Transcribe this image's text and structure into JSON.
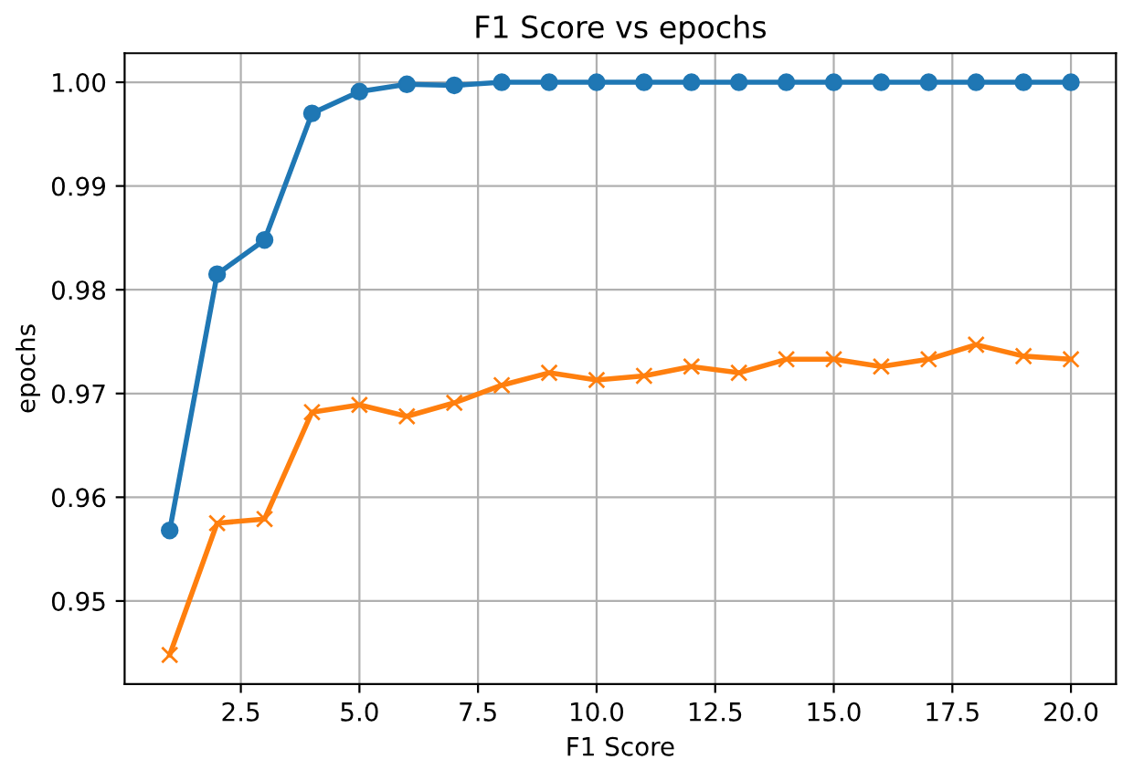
{
  "chart_data": {
    "type": "line",
    "title": "F1 Score vs epochs",
    "xlabel": "F1 Score",
    "ylabel": "epochs",
    "x": [
      1,
      2,
      3,
      4,
      5,
      6,
      7,
      8,
      9,
      10,
      11,
      12,
      13,
      14,
      15,
      16,
      17,
      18,
      19,
      20
    ],
    "series": [
      {
        "color": "#1f77b4",
        "marker": "circle",
        "values": [
          0.9568,
          0.9815,
          0.9848,
          0.997,
          0.9991,
          0.9998,
          0.9997,
          1.0,
          1.0,
          1.0,
          1.0,
          1.0,
          1.0,
          1.0,
          1.0,
          1.0,
          1.0,
          1.0,
          1.0,
          1.0
        ]
      },
      {
        "color": "#ff7f0e",
        "marker": "cross",
        "values": [
          0.9448,
          0.9575,
          0.9579,
          0.9682,
          0.9689,
          0.9678,
          0.9691,
          0.9708,
          0.972,
          0.9713,
          0.9717,
          0.9726,
          0.972,
          0.9733,
          0.9733,
          0.9726,
          0.9733,
          0.9747,
          0.9736,
          0.9733
        ]
      }
    ],
    "xlim": [
      0.05,
      20.95
    ],
    "xticks": [
      {
        "value": 2.5,
        "label": "2.5"
      },
      {
        "value": 5,
        "label": "5.0"
      },
      {
        "value": 7.5,
        "label": "7.5"
      },
      {
        "value": 10,
        "label": "10.0"
      },
      {
        "value": 12.5,
        "label": "12.5"
      },
      {
        "value": 15,
        "label": "15.0"
      },
      {
        "value": 17.5,
        "label": "17.5"
      },
      {
        "value": 20,
        "label": "20.0"
      }
    ],
    "ylim": [
      0.942,
      1.0028
    ],
    "yticks": [
      {
        "value": 0.95,
        "label": "0.95"
      },
      {
        "value": 0.96,
        "label": "0.96"
      },
      {
        "value": 0.97,
        "label": "0.97"
      },
      {
        "value": 0.98,
        "label": "0.98"
      },
      {
        "value": 0.99,
        "label": "0.99"
      },
      {
        "value": 1.0,
        "label": "1.00"
      }
    ],
    "grid": true,
    "line_style": "solid"
  }
}
